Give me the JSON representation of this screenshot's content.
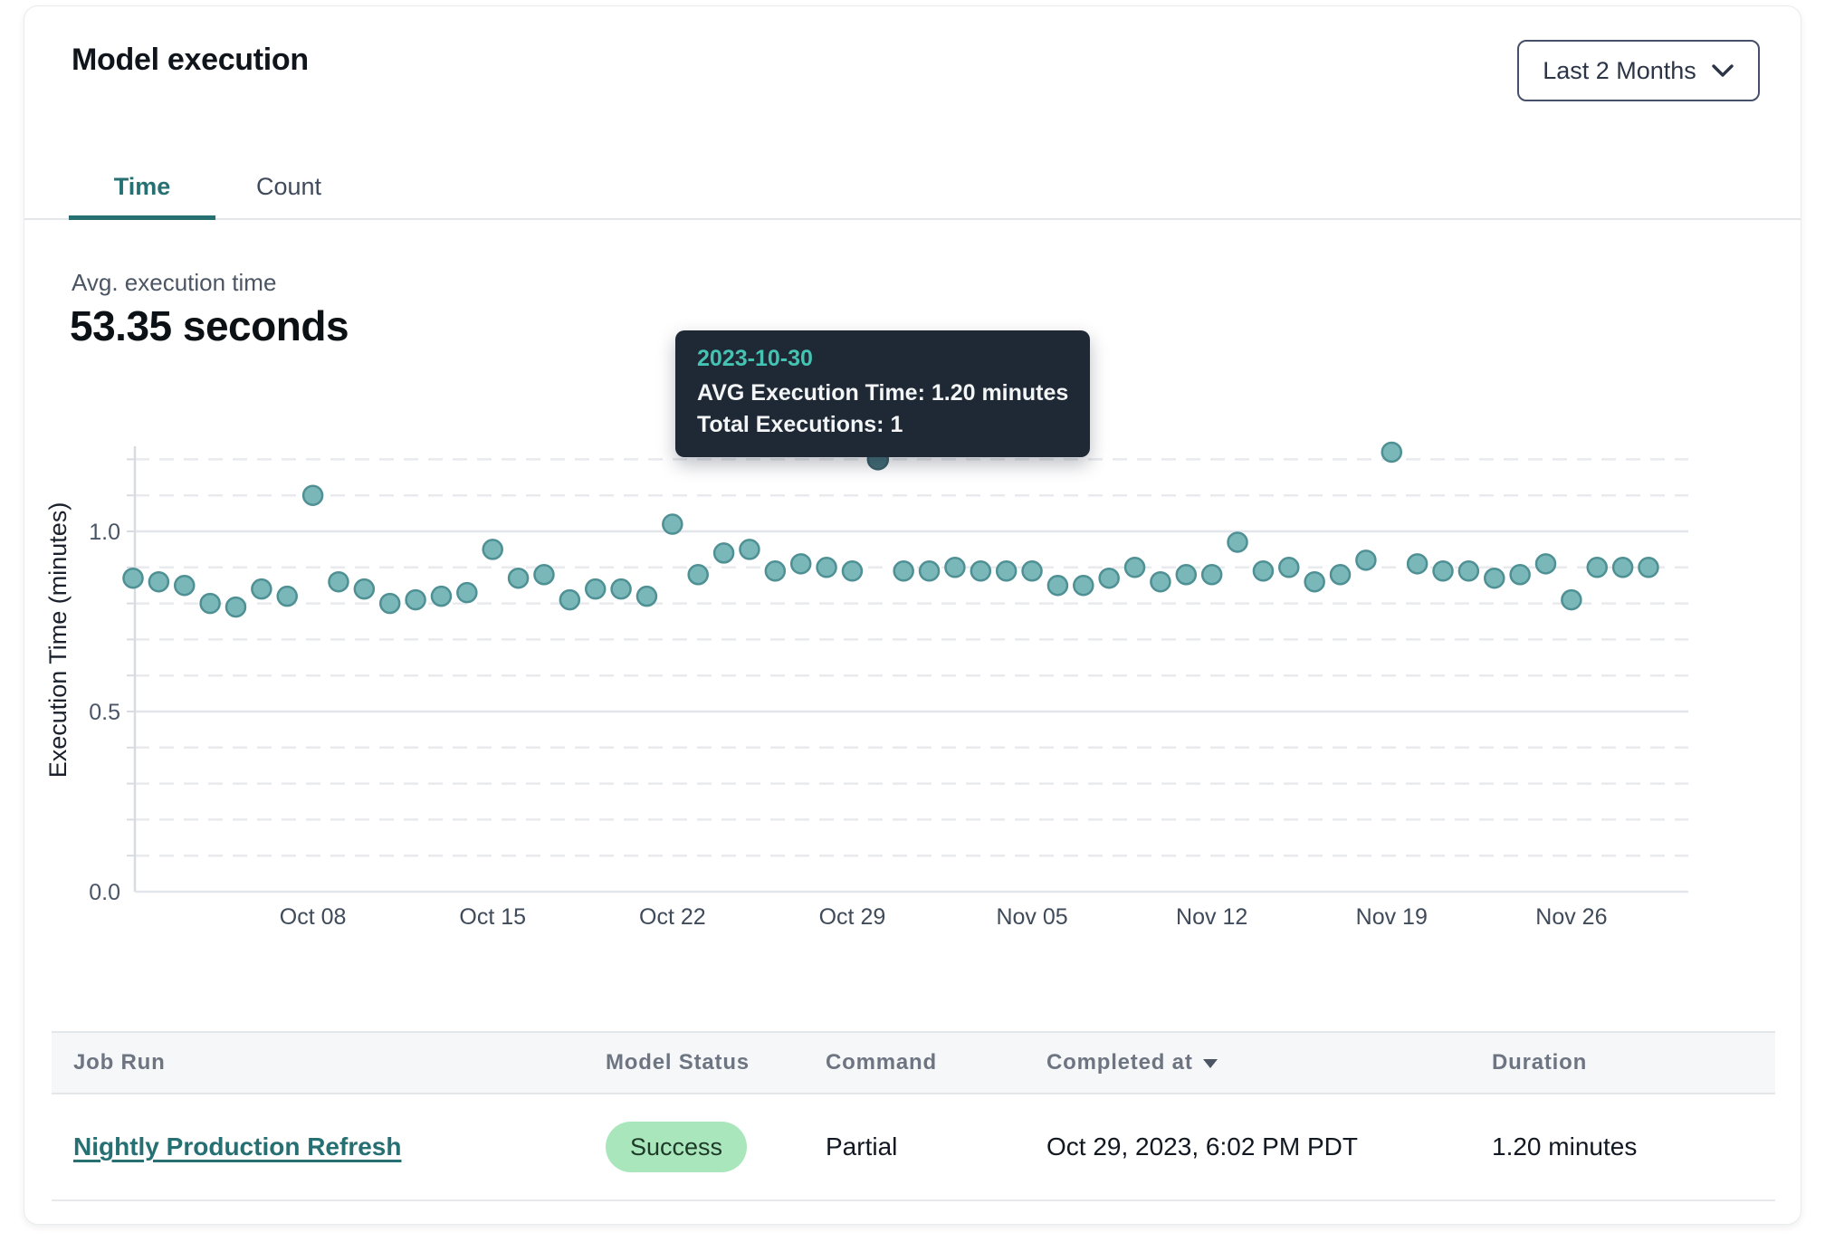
{
  "header": {
    "title": "Model execution",
    "range_selector": {
      "label": "Last 2 Months"
    }
  },
  "tabs": [
    {
      "label": "Time",
      "active": true
    },
    {
      "label": "Count",
      "active": false
    }
  ],
  "summary": {
    "label": "Avg. execution time",
    "value": "53.35 seconds"
  },
  "tooltip": {
    "date": "2023-10-30",
    "line1": "AVG Execution Time: 1.20 minutes",
    "line2": "Total Executions: 1"
  },
  "chart_data": {
    "type": "scatter",
    "title": "",
    "xlabel": "",
    "ylabel": "Execution Time (minutes)",
    "ylim": [
      0,
      1.24
    ],
    "yticks": [
      0.0,
      0.5,
      1.0
    ],
    "grid": "horizontal, dashed minor lines every 0.1, solid at 0.5 and 1.0, no vertical gridlines",
    "legend": "none",
    "x_ticks": [
      {
        "label": "Oct 08",
        "date": "2023-10-08"
      },
      {
        "label": "Oct 15",
        "date": "2023-10-15"
      },
      {
        "label": "Oct 22",
        "date": "2023-10-22"
      },
      {
        "label": "Oct 29",
        "date": "2023-10-29"
      },
      {
        "label": "Nov 05",
        "date": "2023-11-05"
      },
      {
        "label": "Nov 12",
        "date": "2023-11-12"
      },
      {
        "label": "Nov 19",
        "date": "2023-11-19"
      },
      {
        "label": "Nov 26",
        "date": "2023-11-26"
      }
    ],
    "highlighted_point": {
      "date": "2023-10-30",
      "value": 1.2,
      "total_executions": 1
    },
    "series": [
      {
        "name": "AVG Execution Time (minutes)",
        "points": [
          {
            "date": "2023-10-01",
            "value": 0.87
          },
          {
            "date": "2023-10-02",
            "value": 0.86
          },
          {
            "date": "2023-10-03",
            "value": 0.85
          },
          {
            "date": "2023-10-04",
            "value": 0.8
          },
          {
            "date": "2023-10-05",
            "value": 0.79
          },
          {
            "date": "2023-10-06",
            "value": 0.84
          },
          {
            "date": "2023-10-07",
            "value": 0.82
          },
          {
            "date": "2023-10-08",
            "value": 1.1
          },
          {
            "date": "2023-10-09",
            "value": 0.86
          },
          {
            "date": "2023-10-10",
            "value": 0.84
          },
          {
            "date": "2023-10-11",
            "value": 0.8
          },
          {
            "date": "2023-10-12",
            "value": 0.81
          },
          {
            "date": "2023-10-13",
            "value": 0.82
          },
          {
            "date": "2023-10-14",
            "value": 0.83
          },
          {
            "date": "2023-10-15",
            "value": 0.95
          },
          {
            "date": "2023-10-16",
            "value": 0.87
          },
          {
            "date": "2023-10-17",
            "value": 0.88
          },
          {
            "date": "2023-10-18",
            "value": 0.81
          },
          {
            "date": "2023-10-19",
            "value": 0.84
          },
          {
            "date": "2023-10-20",
            "value": 0.84
          },
          {
            "date": "2023-10-21",
            "value": 0.82
          },
          {
            "date": "2023-10-22",
            "value": 1.02
          },
          {
            "date": "2023-10-23",
            "value": 0.88
          },
          {
            "date": "2023-10-24",
            "value": 0.94
          },
          {
            "date": "2023-10-25",
            "value": 0.95
          },
          {
            "date": "2023-10-26",
            "value": 0.89
          },
          {
            "date": "2023-10-27",
            "value": 0.91
          },
          {
            "date": "2023-10-28",
            "value": 0.9
          },
          {
            "date": "2023-10-29",
            "value": 0.89
          },
          {
            "date": "2023-10-30",
            "value": 1.2
          },
          {
            "date": "2023-10-31",
            "value": 0.89
          },
          {
            "date": "2023-11-01",
            "value": 0.89
          },
          {
            "date": "2023-11-02",
            "value": 0.9
          },
          {
            "date": "2023-11-03",
            "value": 0.89
          },
          {
            "date": "2023-11-04",
            "value": 0.89
          },
          {
            "date": "2023-11-05",
            "value": 0.89
          },
          {
            "date": "2023-11-06",
            "value": 0.85
          },
          {
            "date": "2023-11-07",
            "value": 0.85
          },
          {
            "date": "2023-11-08",
            "value": 0.87
          },
          {
            "date": "2023-11-09",
            "value": 0.9
          },
          {
            "date": "2023-11-10",
            "value": 0.86
          },
          {
            "date": "2023-11-11",
            "value": 0.88
          },
          {
            "date": "2023-11-12",
            "value": 0.88
          },
          {
            "date": "2023-11-13",
            "value": 0.97
          },
          {
            "date": "2023-11-14",
            "value": 0.89
          },
          {
            "date": "2023-11-15",
            "value": 0.9
          },
          {
            "date": "2023-11-16",
            "value": 0.86
          },
          {
            "date": "2023-11-17",
            "value": 0.88
          },
          {
            "date": "2023-11-18",
            "value": 0.92
          },
          {
            "date": "2023-11-19",
            "value": 1.22
          },
          {
            "date": "2023-11-20",
            "value": 0.91
          },
          {
            "date": "2023-11-21",
            "value": 0.89
          },
          {
            "date": "2023-11-22",
            "value": 0.89
          },
          {
            "date": "2023-11-23",
            "value": 0.87
          },
          {
            "date": "2023-11-24",
            "value": 0.88
          },
          {
            "date": "2023-11-25",
            "value": 0.91
          },
          {
            "date": "2023-11-26",
            "value": 0.81
          },
          {
            "date": "2023-11-27",
            "value": 0.9
          },
          {
            "date": "2023-11-28",
            "value": 0.9
          },
          {
            "date": "2023-11-29",
            "value": 0.9
          }
        ]
      }
    ]
  },
  "table": {
    "columns": [
      {
        "label": "Job Run",
        "sortable": false
      },
      {
        "label": "Model Status",
        "sortable": false
      },
      {
        "label": "Command",
        "sortable": false
      },
      {
        "label": "Completed at",
        "sorted": "desc"
      },
      {
        "label": "Duration",
        "sortable": false
      }
    ],
    "rows": [
      {
        "job_run": "Nightly Production Refresh",
        "model_status": "Success",
        "command": "Partial",
        "completed_at": "Oct 29, 2023, 6:02 PM PDT",
        "duration": "1.20 minutes"
      }
    ]
  },
  "colors": {
    "accent_teal": "#266f72",
    "dot_fill": "#7ab7b9",
    "dot_stroke": "#4e9094",
    "dot_highlight_fill": "#436e78",
    "dot_highlight_stroke": "#3a5f68",
    "tooltip_bg": "#1e2935",
    "tooltip_date": "#45c3b2",
    "badge_bg": "#a9e6bc",
    "badge_text": "#1d3928",
    "grid_minor": "#e8eaee",
    "grid_major": "#e2e5e9",
    "axis_line": "#d8dce1",
    "tick_text": "#4a5568",
    "axis_title_text": "#1a202c"
  }
}
